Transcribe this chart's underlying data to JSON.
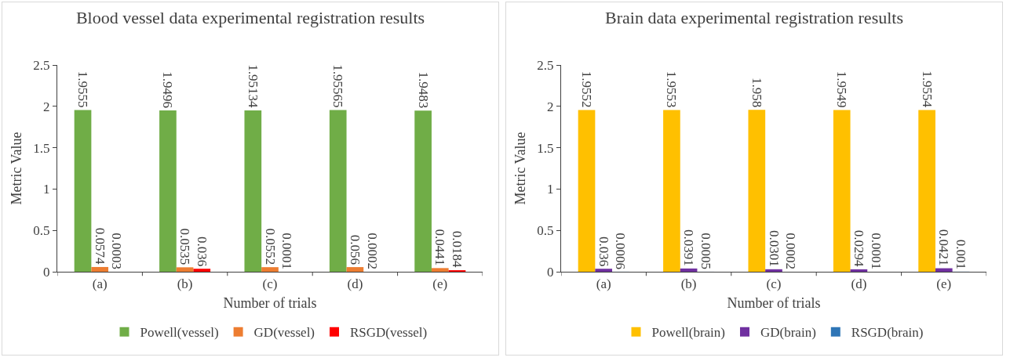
{
  "chart_data": [
    {
      "type": "bar",
      "title": "Blood vessel data experimental registration results",
      "xlabel": "Number of trials",
      "ylabel": "Metric Value",
      "categories": [
        "(a)",
        "(b)",
        "(c)",
        "(d)",
        "(e)"
      ],
      "series": [
        {
          "name": "Powell(vessel)",
          "color": "#70ad47",
          "values": [
            1.9555,
            1.9496,
            1.95134,
            1.95565,
            1.9483
          ]
        },
        {
          "name": "GD(vessel)",
          "color": "#ed7d31",
          "values": [
            0.0574,
            0.0535,
            0.0552,
            0.056,
            0.0441
          ]
        },
        {
          "name": "RSGD(vessel)",
          "color": "#ff0000",
          "values": [
            0.0003,
            0.036,
            0.0001,
            0.0002,
            0.0184
          ]
        }
      ],
      "ylim": [
        0,
        2.5
      ],
      "yticks": [
        0,
        0.5,
        1,
        1.5,
        2,
        2.5
      ],
      "grid": false,
      "legend": "bottom",
      "data_labels": true
    },
    {
      "type": "bar",
      "title": "Brain data experimental registration results",
      "xlabel": "Number of trials",
      "ylabel": "Metric Value",
      "categories": [
        "(a)",
        "(b)",
        "(c)",
        "(d)",
        "(e)"
      ],
      "series": [
        {
          "name": "Powell(brain)",
          "color": "#ffc000",
          "values": [
            1.9552,
            1.9553,
            1.958,
            1.9549,
            1.9554
          ]
        },
        {
          "name": "GD(brain)",
          "color": "#7030a0",
          "values": [
            0.036,
            0.0391,
            0.0301,
            0.0294,
            0.0421
          ]
        },
        {
          "name": "RSGD(brain)",
          "color": "#2e75b6",
          "values": [
            0.0006,
            0.0005,
            0.0002,
            0.0001,
            0.001
          ]
        }
      ],
      "ylim": [
        0,
        2.5
      ],
      "yticks": [
        0,
        0.5,
        1,
        1.5,
        2,
        2.5
      ],
      "grid": false,
      "legend": "bottom",
      "data_labels": true
    }
  ]
}
